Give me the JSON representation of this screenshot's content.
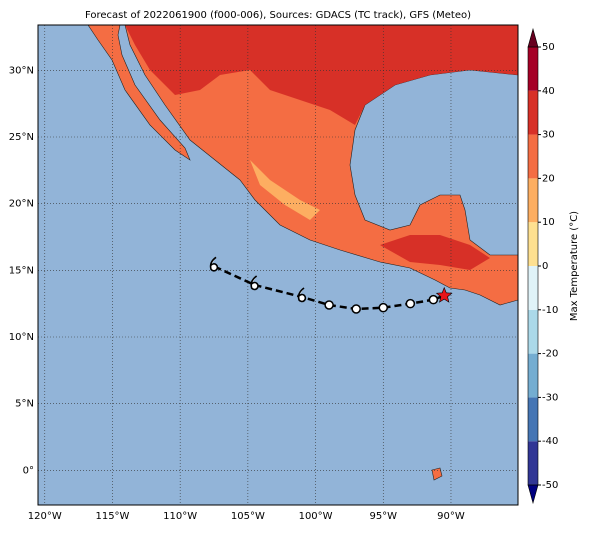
{
  "chart_data": {
    "type": "map",
    "title": "Forecast of 2022061900 (f000-006), Sources: GDACS (TC track), GFS (Meteo)",
    "xlim": [
      -120.5,
      -85.05
    ],
    "ylim": [
      -2.6,
      33.4
    ],
    "xticks": [
      {
        "value": -120,
        "label": "120°W"
      },
      {
        "value": -115,
        "label": "115°W"
      },
      {
        "value": -110,
        "label": "110°W"
      },
      {
        "value": -105,
        "label": "105°W"
      },
      {
        "value": -100,
        "label": "100°W"
      },
      {
        "value": -95,
        "label": "95°W"
      },
      {
        "value": -90,
        "label": "90°W"
      }
    ],
    "yticks": [
      {
        "value": 0,
        "label": "0°"
      },
      {
        "value": 5,
        "label": "5°N"
      },
      {
        "value": 10,
        "label": "10°N"
      },
      {
        "value": 15,
        "label": "15°N"
      },
      {
        "value": 20,
        "label": "20°N"
      },
      {
        "value": 25,
        "label": "25°N"
      },
      {
        "value": 30,
        "label": "30°N"
      }
    ],
    "grid": true,
    "track": {
      "color": "#000000",
      "lon": [
        -90.5,
        -91.3,
        -93,
        -95,
        -97,
        -99,
        -101,
        -104.5,
        -107.5
      ],
      "lat": [
        13.1,
        12.8,
        12.5,
        12.2,
        12.1,
        12.4,
        13.0,
        13.9,
        15.3
      ],
      "symbols": [
        "star",
        "circle",
        "circle",
        "circle",
        "circle",
        "circle",
        "storm",
        "storm",
        "storm"
      ]
    },
    "colorbar": {
      "label": "Max Temperature (°C)",
      "lim": [
        -50,
        50
      ],
      "ticks": [
        -50,
        -40,
        -30,
        -20,
        -10,
        0,
        10,
        20,
        30,
        40,
        50
      ],
      "colors": [
        "#313695",
        "#4575b4",
        "#74add1",
        "#abd9e9",
        "#e0f3f8",
        "#fee090",
        "#fdae61",
        "#f46d43",
        "#d73027",
        "#a50026"
      ],
      "extend_colors": [
        "#000080",
        "#67001f"
      ]
    }
  }
}
